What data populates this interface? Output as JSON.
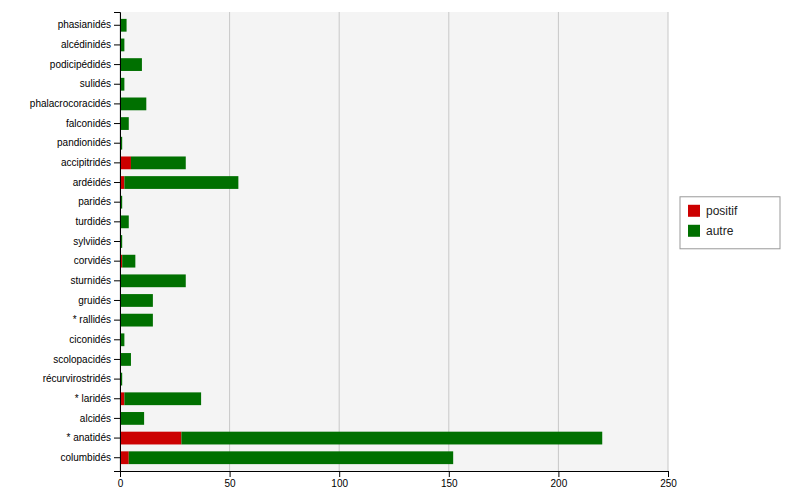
{
  "chart_data": {
    "type": "bar",
    "orientation": "horizontal",
    "stacked": true,
    "categories": [
      "phasianidés",
      "alcédinidés",
      "podicipédidés",
      "sulidés",
      "phalacrocoracidés",
      "falconidés",
      "pandionidés",
      "accipitridés",
      "ardéidés",
      "paridés",
      "turdidés",
      "sylviidés",
      "corvidés",
      "sturnidés",
      "gruidés",
      "* rallidés",
      "ciconidés",
      "scolopacidés",
      "récurvirostridés",
      "* laridés",
      "alcidés",
      "* anatidés",
      "columbidés"
    ],
    "series": [
      {
        "name": "positif",
        "color": "#cc0000",
        "values": [
          0,
          0,
          0,
          0,
          0,
          0,
          0,
          5,
          2,
          0,
          0,
          0,
          1,
          0,
          0,
          0,
          0,
          0,
          0,
          2,
          0,
          28,
          4
        ]
      },
      {
        "name": "autre",
        "color": "#007000",
        "values": [
          3,
          2,
          10,
          2,
          12,
          4,
          1,
          25,
          52,
          1,
          4,
          1,
          6,
          30,
          15,
          15,
          2,
          5,
          1,
          35,
          11,
          192,
          148
        ]
      }
    ],
    "xlim": [
      0,
      250
    ],
    "xticks": [
      0,
      50,
      100,
      150,
      200,
      250
    ],
    "grid": true,
    "legend": "right"
  }
}
